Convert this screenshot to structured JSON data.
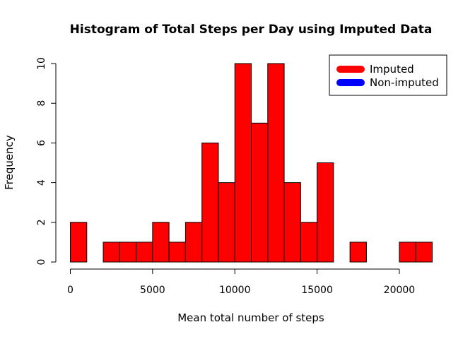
{
  "chart_data": {
    "type": "bar",
    "title": "Histogram of Total Steps per Day using Imputed Data",
    "xlabel": "Mean total number of steps",
    "ylabel": "Frequency",
    "bin_width": 1000,
    "xlim": [
      0,
      22000
    ],
    "ylim": [
      0,
      10
    ],
    "x_ticks": [
      0,
      5000,
      10000,
      15000,
      20000
    ],
    "y_ticks": [
      0,
      2,
      4,
      6,
      8,
      10
    ],
    "bin_starts": [
      0,
      1000,
      2000,
      3000,
      4000,
      5000,
      6000,
      7000,
      8000,
      9000,
      10000,
      11000,
      12000,
      13000,
      14000,
      15000,
      16000,
      17000,
      18000,
      19000,
      20000,
      21000
    ],
    "values": [
      2,
      0,
      1,
      1,
      1,
      2,
      1,
      2,
      6,
      4,
      10,
      7,
      10,
      4,
      2,
      5,
      0,
      1,
      0,
      0,
      1,
      1
    ],
    "bar_color": "#ff0000",
    "legend": {
      "position": "top-right",
      "items": [
        {
          "label": "Imputed",
          "color": "#ff0000"
        },
        {
          "label": "Non-imputed",
          "color": "#0000ff"
        }
      ]
    }
  }
}
